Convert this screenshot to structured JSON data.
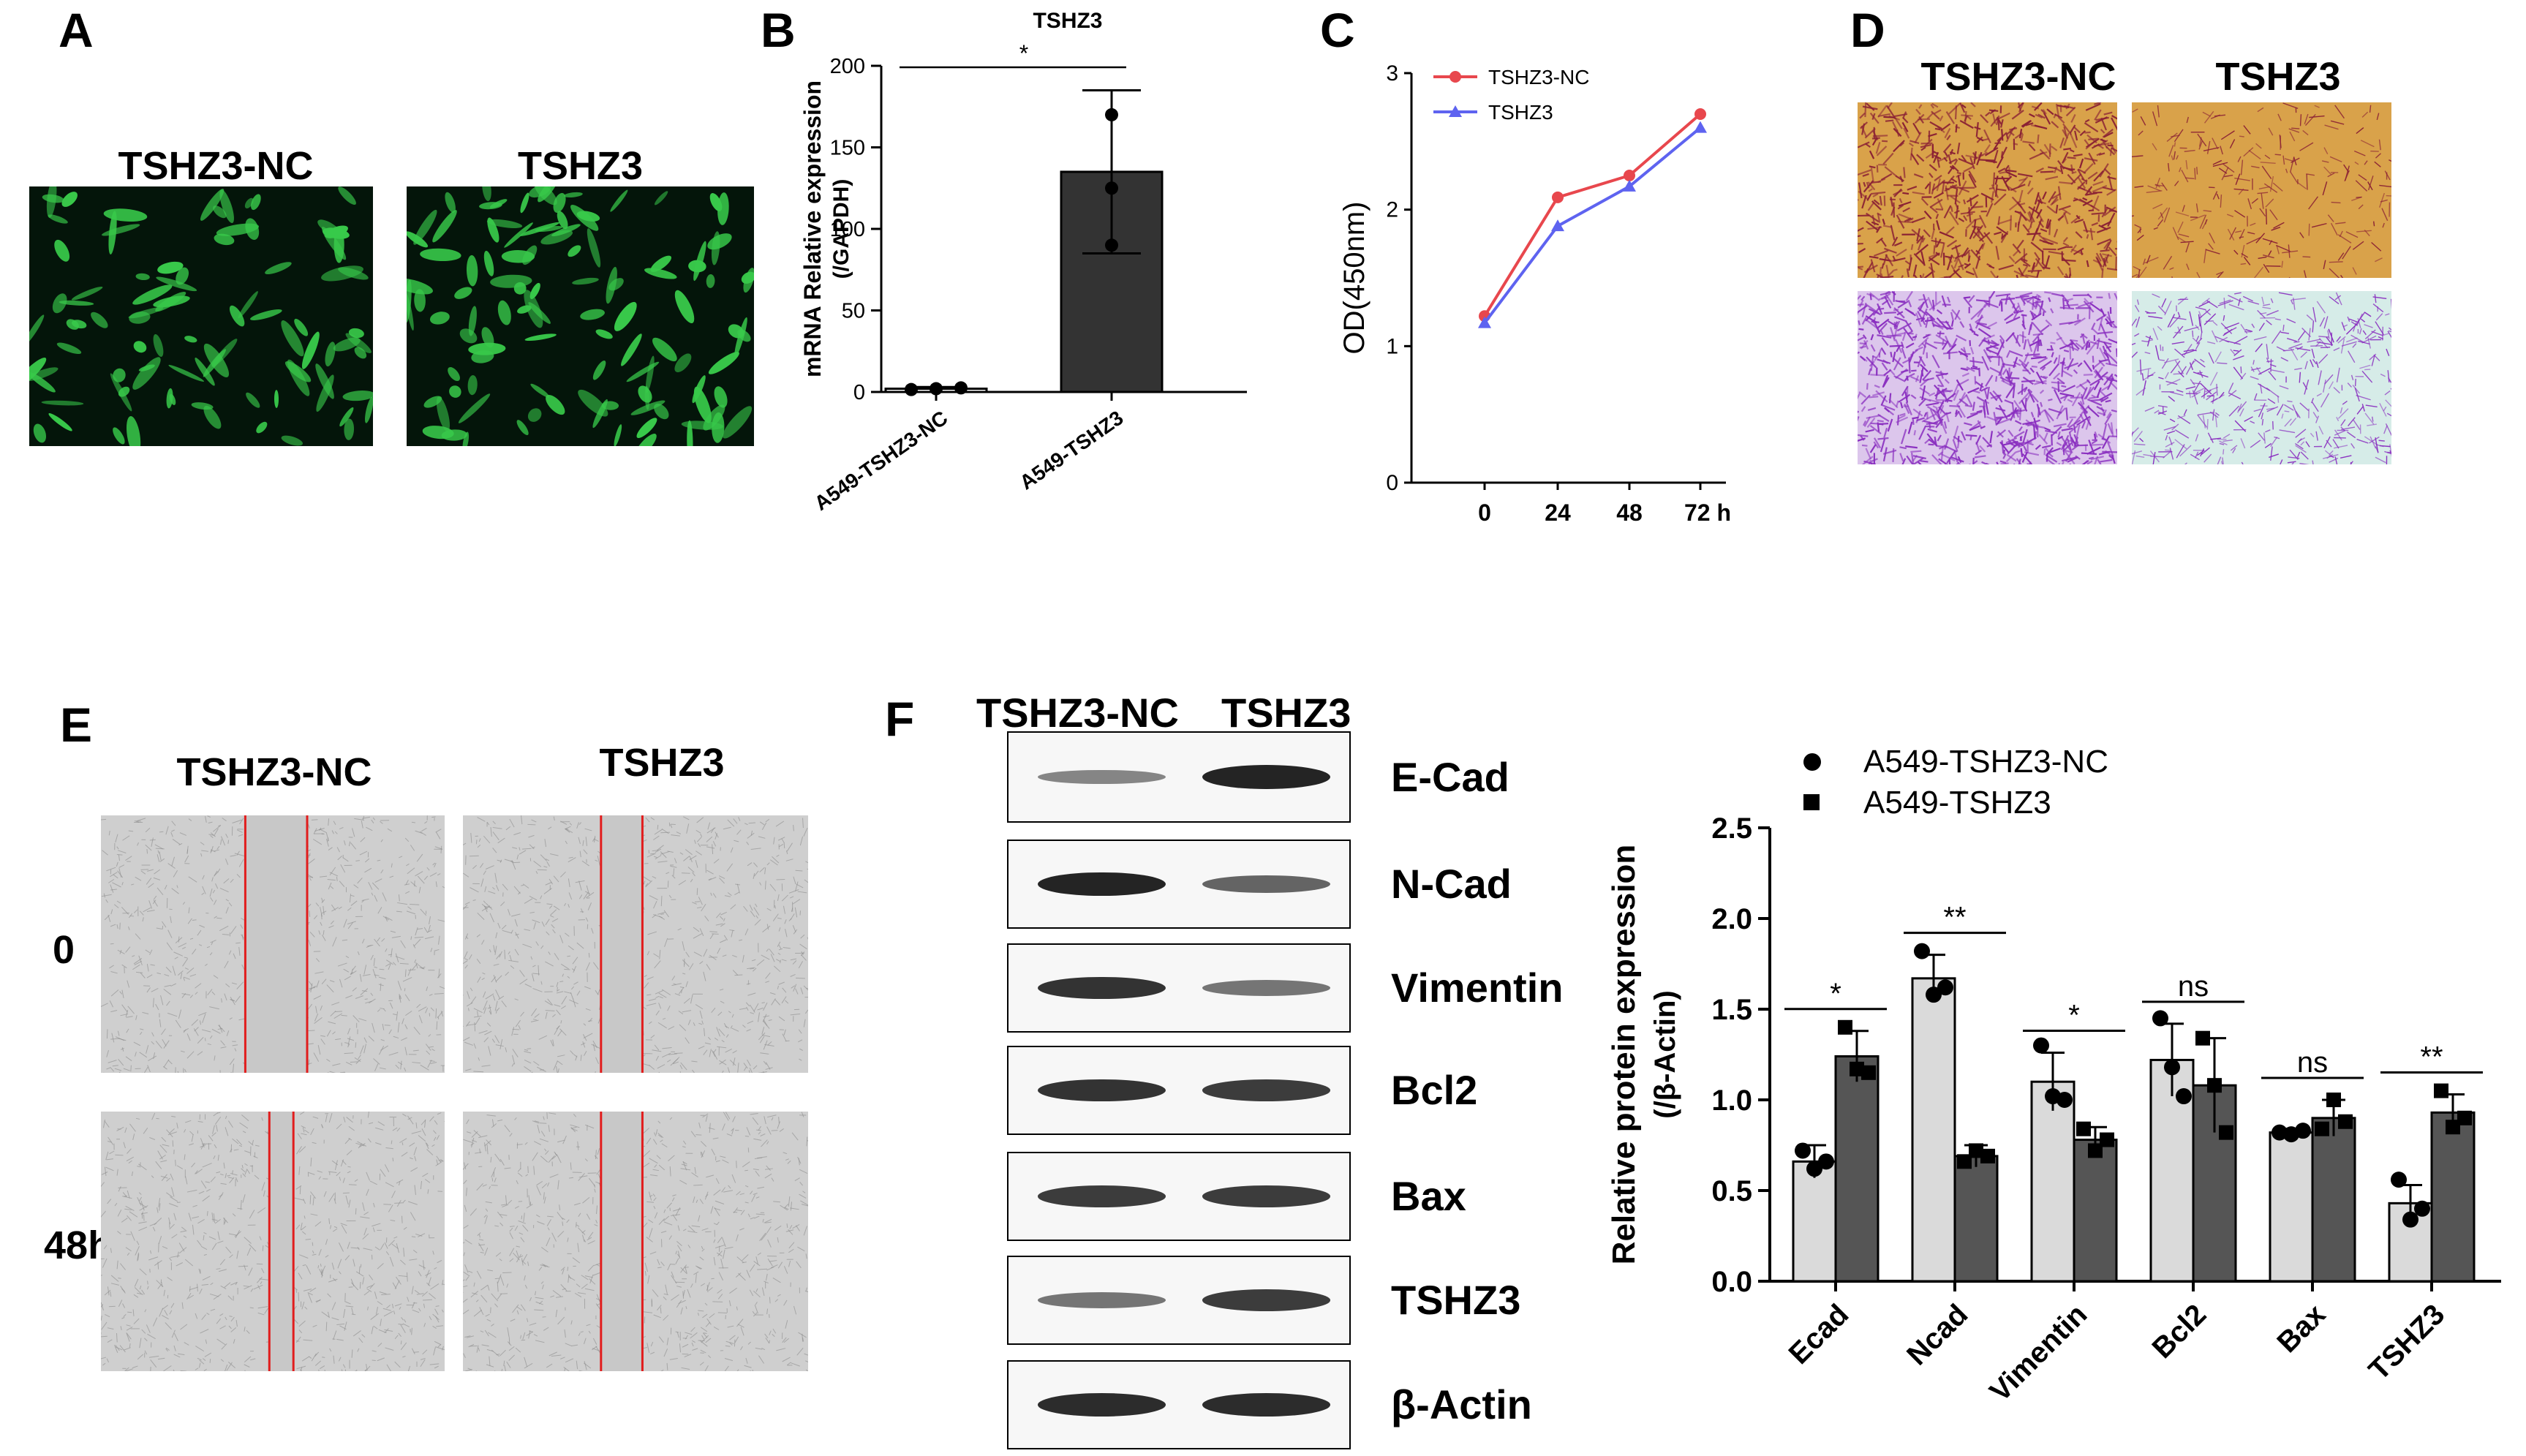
{
  "colors": {
    "fluor_bg": "#04150a",
    "fluor_cell": "#38c94a",
    "nc_line": "#e8474d",
    "tshz3_line": "#5e63f0",
    "transwell_top_bg": "#d9a24a",
    "transwell_top_cell": "#8a2034",
    "transwell_bot_bg_nc": "#dcc6ec",
    "transwell_bot_bg_tshz3": "#d6ece8",
    "transwell_bot_cell": "#8a2fc0",
    "wound_bg": "#cfcfcf",
    "wound_line": "#e11d1d",
    "bar_light": "#dadada",
    "bar_dark": "#555555",
    "bar_B": "#333333"
  },
  "panelA": {
    "label": "A",
    "images": [
      {
        "title": "TSHZ3-NC"
      },
      {
        "title": "TSHZ3"
      }
    ]
  },
  "panelB": {
    "label": "B",
    "chart_data": {
      "type": "bar",
      "title": "TSHZ3",
      "ylabel": "mRNA Relative expression",
      "ylabel2": "(/GAPDH)",
      "ylim": [
        0,
        200
      ],
      "yticks": [
        "0",
        "50",
        "100",
        "150",
        "200"
      ],
      "categories": [
        "A549-TSHZ3-NC",
        "A549-TSHZ3"
      ],
      "values": [
        2,
        135
      ],
      "error": [
        1,
        50
      ],
      "points": [
        [
          1.5,
          2.0,
          2.5
        ],
        [
          170,
          125,
          90
        ]
      ],
      "significance": "*"
    }
  },
  "panelC": {
    "label": "C",
    "chart_data": {
      "type": "line",
      "ylabel": "OD(450nm)",
      "x": [
        "0",
        "24",
        "48",
        "72 h"
      ],
      "ylim": [
        0,
        3
      ],
      "yticks": [
        "0",
        "1",
        "2",
        "3"
      ],
      "series": [
        {
          "name": "TSHZ3-NC",
          "values": [
            1.22,
            2.09,
            2.25,
            2.7
          ]
        },
        {
          "name": "TSHZ3",
          "values": [
            1.17,
            1.88,
            2.17,
            2.6
          ]
        }
      ],
      "legend": "top-left"
    }
  },
  "panelD": {
    "label": "D",
    "columns": [
      "TSHZ3-NC",
      "TSHZ3"
    ]
  },
  "panelE": {
    "label": "E",
    "columns": [
      "TSHZ3-NC",
      "TSHZ3"
    ],
    "rows": [
      "0",
      "48h"
    ]
  },
  "panelF": {
    "label": "F",
    "blot_columns": [
      "TSHZ3-NC",
      "TSHZ3"
    ],
    "blot_rows": [
      {
        "name": "E-Cad",
        "nc": 0.35,
        "tshz3": 0.95
      },
      {
        "name": "N-Cad",
        "nc": 0.95,
        "tshz3": 0.55
      },
      {
        "name": "Vimentin",
        "nc": 0.85,
        "tshz3": 0.45
      },
      {
        "name": "Bcl2",
        "nc": 0.85,
        "tshz3": 0.8
      },
      {
        "name": "Bax",
        "nc": 0.8,
        "tshz3": 0.8
      },
      {
        "name": "TSHZ3",
        "nc": 0.45,
        "tshz3": 0.8
      },
      {
        "name": "β-Actin",
        "nc": 0.9,
        "tshz3": 0.9
      }
    ],
    "chart_data": {
      "type": "bar",
      "ylabel": "Relative protein expression",
      "ylabel2": "(/β-Actin)",
      "ylim": [
        0,
        2.5
      ],
      "yticks": [
        "0.0",
        "0.5",
        "1.0",
        "1.5",
        "2.0",
        "2.5"
      ],
      "categories": [
        "Ecad",
        "Ncad",
        "Vimentin",
        "Bcl2",
        "Bax",
        "TSHZ3"
      ],
      "series": [
        {
          "name": "A549-TSHZ3-NC",
          "values": [
            0.66,
            1.67,
            1.1,
            1.22,
            0.82,
            0.43
          ],
          "error": [
            0.09,
            0.13,
            0.16,
            0.2,
            0.02,
            0.1
          ],
          "points": [
            [
              0.72,
              0.62,
              0.66
            ],
            [
              1.82,
              1.58,
              1.62
            ],
            [
              1.3,
              1.02,
              1.0
            ],
            [
              1.45,
              1.18,
              1.02
            ],
            [
              0.82,
              0.81,
              0.83
            ],
            [
              0.56,
              0.34,
              0.4
            ]
          ]
        },
        {
          "name": "A549-TSHZ3",
          "values": [
            1.24,
            0.69,
            0.78,
            1.08,
            0.9,
            0.93
          ],
          "error": [
            0.14,
            0.06,
            0.07,
            0.26,
            0.1,
            0.1
          ],
          "points": [
            [
              1.4,
              1.17,
              1.15
            ],
            [
              0.66,
              0.72,
              0.69
            ],
            [
              0.84,
              0.72,
              0.78
            ],
            [
              1.34,
              1.08,
              0.82
            ],
            [
              0.84,
              1.0,
              0.88
            ],
            [
              1.05,
              0.85,
              0.9
            ]
          ]
        }
      ],
      "significance": [
        "*",
        "**",
        "*",
        "ns",
        "ns",
        "**"
      ],
      "legend": "top"
    }
  }
}
